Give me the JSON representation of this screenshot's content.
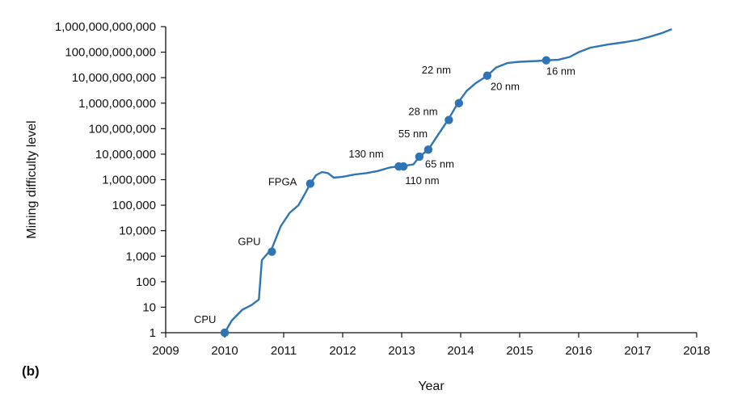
{
  "chart_data": {
    "type": "line",
    "panel_label": "(b)",
    "xlabel": "Year",
    "ylabel": "Mining difficulty level",
    "x_scale": "linear",
    "y_scale": "log10",
    "xlim": [
      2009,
      2018
    ],
    "ylim": [
      1,
      1000000000000
    ],
    "x_ticks": [
      "2009",
      "2010",
      "2011",
      "2012",
      "2013",
      "2014",
      "2015",
      "2016",
      "2017",
      "2018"
    ],
    "y_ticks": [
      "1",
      "10",
      "100",
      "1,000",
      "10,000",
      "100,000",
      "1,000,000",
      "10,000,000",
      "100,000,000",
      "1,000,000,000",
      "10,000,000,000",
      "100,000,000,000",
      "1,000,000,000,000"
    ],
    "grid": false,
    "line_color": "#2f75b5",
    "series": [
      {
        "x": [
          2010.0,
          2010.12,
          2010.3,
          2010.45,
          2010.58,
          2010.63,
          2010.8,
          2010.95,
          2011.1,
          2011.25,
          2011.35,
          2011.45,
          2011.55,
          2011.65,
          2011.75,
          2011.85,
          2012.0,
          2012.2,
          2012.4,
          2012.6,
          2012.8,
          2012.95,
          2013.05,
          2013.2,
          2013.3,
          2013.45,
          2013.6,
          2013.8,
          2013.95,
          2014.1,
          2014.25,
          2014.45,
          2014.6,
          2014.8,
          2015.0,
          2015.3,
          2015.45,
          2015.65,
          2015.85,
          2016.0,
          2016.2,
          2016.5,
          2016.8,
          2017.0,
          2017.2,
          2017.4,
          2017.58
        ],
        "y": [
          1,
          3,
          8,
          12,
          20,
          700,
          2000,
          15000,
          50000,
          100000,
          250000,
          700000,
          1500000,
          2000000,
          1800000,
          1200000,
          1300000,
          1600000,
          1800000,
          2200000,
          3000000,
          3300000,
          3500000,
          4000000,
          8000000,
          15000000,
          50000000,
          250000000,
          1000000000,
          3000000000,
          6000000000,
          12000000000,
          25000000000,
          38000000000,
          42000000000,
          45000000000,
          48000000000,
          50000000000,
          65000000000,
          100000000000,
          150000000000,
          200000000000,
          250000000000,
          300000000000,
          400000000000,
          550000000000,
          800000000000
        ]
      }
    ],
    "markers": [
      {
        "label": "CPU",
        "x": 2010.0,
        "y": 1
      },
      {
        "label": "GPU",
        "x": 2010.8,
        "y": 1500
      },
      {
        "label": "FPGA",
        "x": 2011.45,
        "y": 700000
      },
      {
        "label": "130 nm",
        "x": 2012.95,
        "y": 3300000
      },
      {
        "label": "110 nm",
        "x": 2013.03,
        "y": 3300000
      },
      {
        "label": "55 nm",
        "x": 2013.3,
        "y": 8000000
      },
      {
        "label": "65 nm",
        "x": 2013.45,
        "y": 15000000
      },
      {
        "label": "28 nm",
        "x": 2013.8,
        "y": 220000000
      },
      {
        "label": "22 nm",
        "x": 2013.97,
        "y": 1000000000
      },
      {
        "label": "20 nm",
        "x": 2014.45,
        "y": 12000000000
      },
      {
        "label": "16 nm",
        "x": 2015.45,
        "y": 48000000000
      }
    ]
  }
}
